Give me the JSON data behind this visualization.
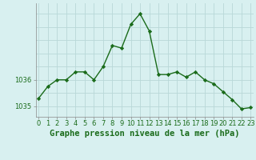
{
  "hours": [
    0,
    1,
    2,
    3,
    4,
    5,
    6,
    7,
    8,
    9,
    10,
    11,
    12,
    13,
    14,
    15,
    16,
    17,
    18,
    19,
    20,
    21,
    22,
    23
  ],
  "pressure": [
    1035.3,
    1035.75,
    1036.0,
    1036.0,
    1036.3,
    1036.3,
    1036.0,
    1036.5,
    1037.3,
    1037.2,
    1038.1,
    1038.5,
    1037.85,
    1036.2,
    1036.2,
    1036.3,
    1036.1,
    1036.3,
    1036.0,
    1035.85,
    1035.55,
    1035.25,
    1034.9,
    1034.95
  ],
  "line_color": "#1a6b1a",
  "marker_color": "#1a6b1a",
  "bg_color": "#d8f0f0",
  "grid_color": "#b8d8d8",
  "xlabel": "Graphe pression niveau de la mer (hPa)",
  "xlabel_color": "#1a6b1a",
  "tick_color": "#1a6b1a",
  "yticks": [
    1035,
    1036
  ],
  "ylim": [
    1034.6,
    1038.9
  ],
  "xlim": [
    -0.3,
    23.3
  ],
  "spine_color": "#888888",
  "label_fontsize": 7.5,
  "tick_fontsize": 6.0
}
